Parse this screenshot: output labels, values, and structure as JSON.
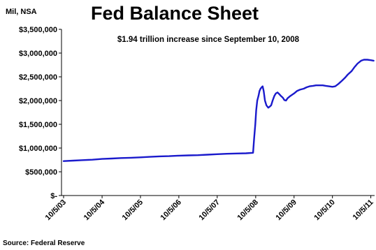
{
  "chart_data": {
    "type": "line",
    "title": "Fed Balance Sheet",
    "unit_label": "Mil, NSA",
    "annotation": "$1.94 trillion increase since September 10, 2008",
    "source": "Source: Federal Reserve",
    "xlabel": "",
    "ylabel": "",
    "ylim": [
      0,
      3500000
    ],
    "y_ticks": [
      0,
      500000,
      1000000,
      1500000,
      2000000,
      2500000,
      3000000,
      3500000
    ],
    "y_tick_labels": [
      "$-",
      "$500,000",
      "$1,000,000",
      "$1,500,000",
      "$2,000,000",
      "$2,500,000",
      "$3,000,000",
      "$3,500,000"
    ],
    "x_tick_labels": [
      "10/5/03",
      "10/5/04",
      "10/5/05",
      "10/5/06",
      "10/5/07",
      "10/5/08",
      "10/5/09",
      "10/5/10",
      "10/5/11"
    ],
    "grid": false,
    "legend": "none",
    "colors": {
      "line": "#1a1acc",
      "axis": "#000000"
    },
    "series": [
      {
        "color": "#1a1acc",
        "x": [
          "2003-10-05",
          "2004-01-05",
          "2004-04-05",
          "2004-07-05",
          "2004-10-05",
          "2005-01-05",
          "2005-04-05",
          "2005-07-05",
          "2005-10-05",
          "2006-01-05",
          "2006-04-05",
          "2006-07-05",
          "2006-10-05",
          "2007-01-05",
          "2007-04-05",
          "2007-07-05",
          "2007-10-05",
          "2008-01-05",
          "2008-04-05",
          "2008-07-05",
          "2008-09-10",
          "2008-09-20",
          "2008-10-01",
          "2008-10-10",
          "2008-10-20",
          "2008-11-01",
          "2008-11-10",
          "2008-11-20",
          "2008-12-01",
          "2008-12-10",
          "2008-12-20",
          "2009-01-01",
          "2009-01-15",
          "2009-02-01",
          "2009-02-15",
          "2009-03-01",
          "2009-03-15",
          "2009-04-01",
          "2009-04-15",
          "2009-05-01",
          "2009-05-15",
          "2009-06-01",
          "2009-06-20",
          "2009-07-05",
          "2009-07-20",
          "2009-08-05",
          "2009-09-01",
          "2009-10-05",
          "2009-11-01",
          "2009-12-01",
          "2010-01-05",
          "2010-02-01",
          "2010-03-01",
          "2010-04-05",
          "2010-05-01",
          "2010-06-01",
          "2010-07-05",
          "2010-08-01",
          "2010-09-01",
          "2010-10-05",
          "2010-11-01",
          "2010-12-01",
          "2011-01-05",
          "2011-02-01",
          "2011-03-01",
          "2011-04-05",
          "2011-05-01",
          "2011-06-01",
          "2011-07-05",
          "2011-08-01",
          "2011-09-01",
          "2011-10-05",
          "2011-11-01"
        ],
        "values": [
          725000,
          735000,
          745000,
          755000,
          770000,
          780000,
          790000,
          795000,
          805000,
          815000,
          825000,
          830000,
          840000,
          845000,
          850000,
          860000,
          870000,
          880000,
          885000,
          890000,
          900000,
          1200000,
          1500000,
          1800000,
          2000000,
          2100000,
          2200000,
          2250000,
          2280000,
          2300000,
          2200000,
          2000000,
          1900000,
          1850000,
          1870000,
          1900000,
          2000000,
          2100000,
          2150000,
          2170000,
          2140000,
          2100000,
          2060000,
          2010000,
          2000000,
          2050000,
          2100000,
          2150000,
          2200000,
          2230000,
          2250000,
          2280000,
          2300000,
          2310000,
          2320000,
          2320000,
          2320000,
          2310000,
          2300000,
          2290000,
          2300000,
          2350000,
          2420000,
          2480000,
          2550000,
          2620000,
          2700000,
          2780000,
          2840000,
          2860000,
          2860000,
          2850000,
          2840000
        ]
      }
    ]
  }
}
